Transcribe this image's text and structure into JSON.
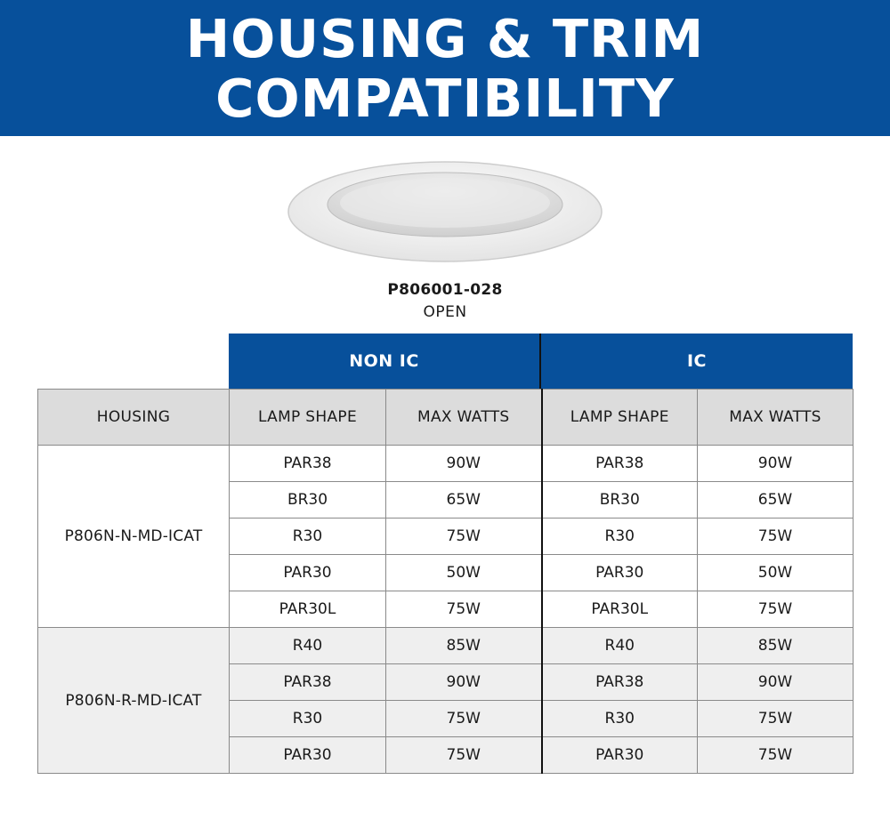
{
  "header": {
    "line1": "HOUSING & TRIM",
    "line2": "COMPATIBILITY"
  },
  "product": {
    "model": "P806001-028",
    "finish": "OPEN"
  },
  "groups": {
    "non_ic": "NON IC",
    "ic": "IC"
  },
  "columns": {
    "housing": "HOUSING",
    "lamp_shape": "LAMP SHAPE",
    "max_watts": "MAX WATTS"
  },
  "housings": [
    {
      "name": "P806N-N-MD-ICAT",
      "rows": [
        {
          "non_ic_lamp": "PAR38",
          "non_ic_watts": "90W",
          "ic_lamp": "PAR38",
          "ic_watts": "90W"
        },
        {
          "non_ic_lamp": "BR30",
          "non_ic_watts": "65W",
          "ic_lamp": "BR30",
          "ic_watts": "65W"
        },
        {
          "non_ic_lamp": "R30",
          "non_ic_watts": "75W",
          "ic_lamp": "R30",
          "ic_watts": "75W"
        },
        {
          "non_ic_lamp": "PAR30",
          "non_ic_watts": "50W",
          "ic_lamp": "PAR30",
          "ic_watts": "50W"
        },
        {
          "non_ic_lamp": "PAR30L",
          "non_ic_watts": "75W",
          "ic_lamp": "PAR30L",
          "ic_watts": "75W"
        }
      ]
    },
    {
      "name": "P806N-R-MD-ICAT",
      "rows": [
        {
          "non_ic_lamp": "R40",
          "non_ic_watts": "85W",
          "ic_lamp": "R40",
          "ic_watts": "85W"
        },
        {
          "non_ic_lamp": "PAR38",
          "non_ic_watts": "90W",
          "ic_lamp": "PAR38",
          "ic_watts": "90W"
        },
        {
          "non_ic_lamp": "R30",
          "non_ic_watts": "75W",
          "ic_lamp": "R30",
          "ic_watts": "75W"
        },
        {
          "non_ic_lamp": "PAR30",
          "non_ic_watts": "75W",
          "ic_lamp": "PAR30",
          "ic_watts": "75W"
        }
      ]
    }
  ],
  "colors": {
    "banner": "#07509b",
    "header_cell": "#dcdcdc",
    "alt_group": "#efefef"
  }
}
